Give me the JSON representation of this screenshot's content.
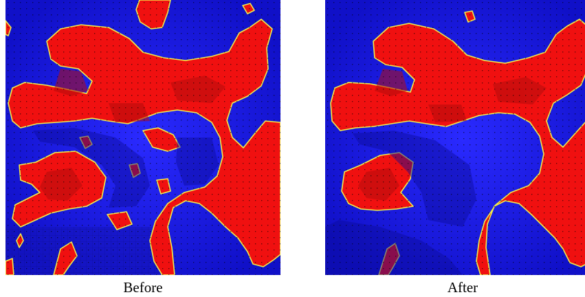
{
  "figure": {
    "captions": {
      "before": "Before",
      "after": "After"
    },
    "colors": {
      "background": "#ffffff",
      "phase_a": "#1a1aee",
      "phase_b": "#f01010",
      "interface": "#f0f04a",
      "mesh_points": "#000000"
    }
  }
}
